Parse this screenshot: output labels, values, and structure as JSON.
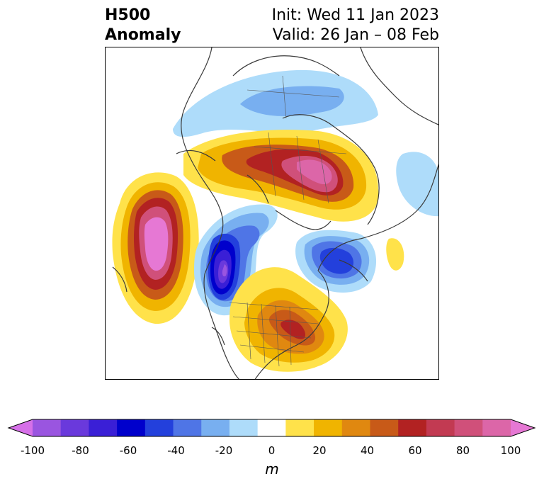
{
  "title": {
    "left_line1": "H500",
    "left_line2": "Anomaly",
    "right_line1": "Init: Wed 11 Jan 2023",
    "right_line2": "Valid: 26 Jan – 08 Feb"
  },
  "colorbar": {
    "unit": "m",
    "ticks": [
      "-100",
      "-80",
      "-60",
      "-40",
      "-20",
      "0",
      "20",
      "40",
      "60",
      "80",
      "100"
    ],
    "colors": [
      "#d670e8",
      "#9a55e0",
      "#6a39dc",
      "#3a1fd6",
      "#0000cc",
      "#2340dc",
      "#4f75e6",
      "#78aff0",
      "#aedcfa",
      "#ffffff",
      "#ffe24a",
      "#f0b400",
      "#e08810",
      "#c85a18",
      "#b22222",
      "#c23a52",
      "#d0507a",
      "#dc66a8",
      "#e678d4"
    ]
  },
  "colors": {
    "coastline": "#3a3a3a",
    "frame": "#000000"
  }
}
